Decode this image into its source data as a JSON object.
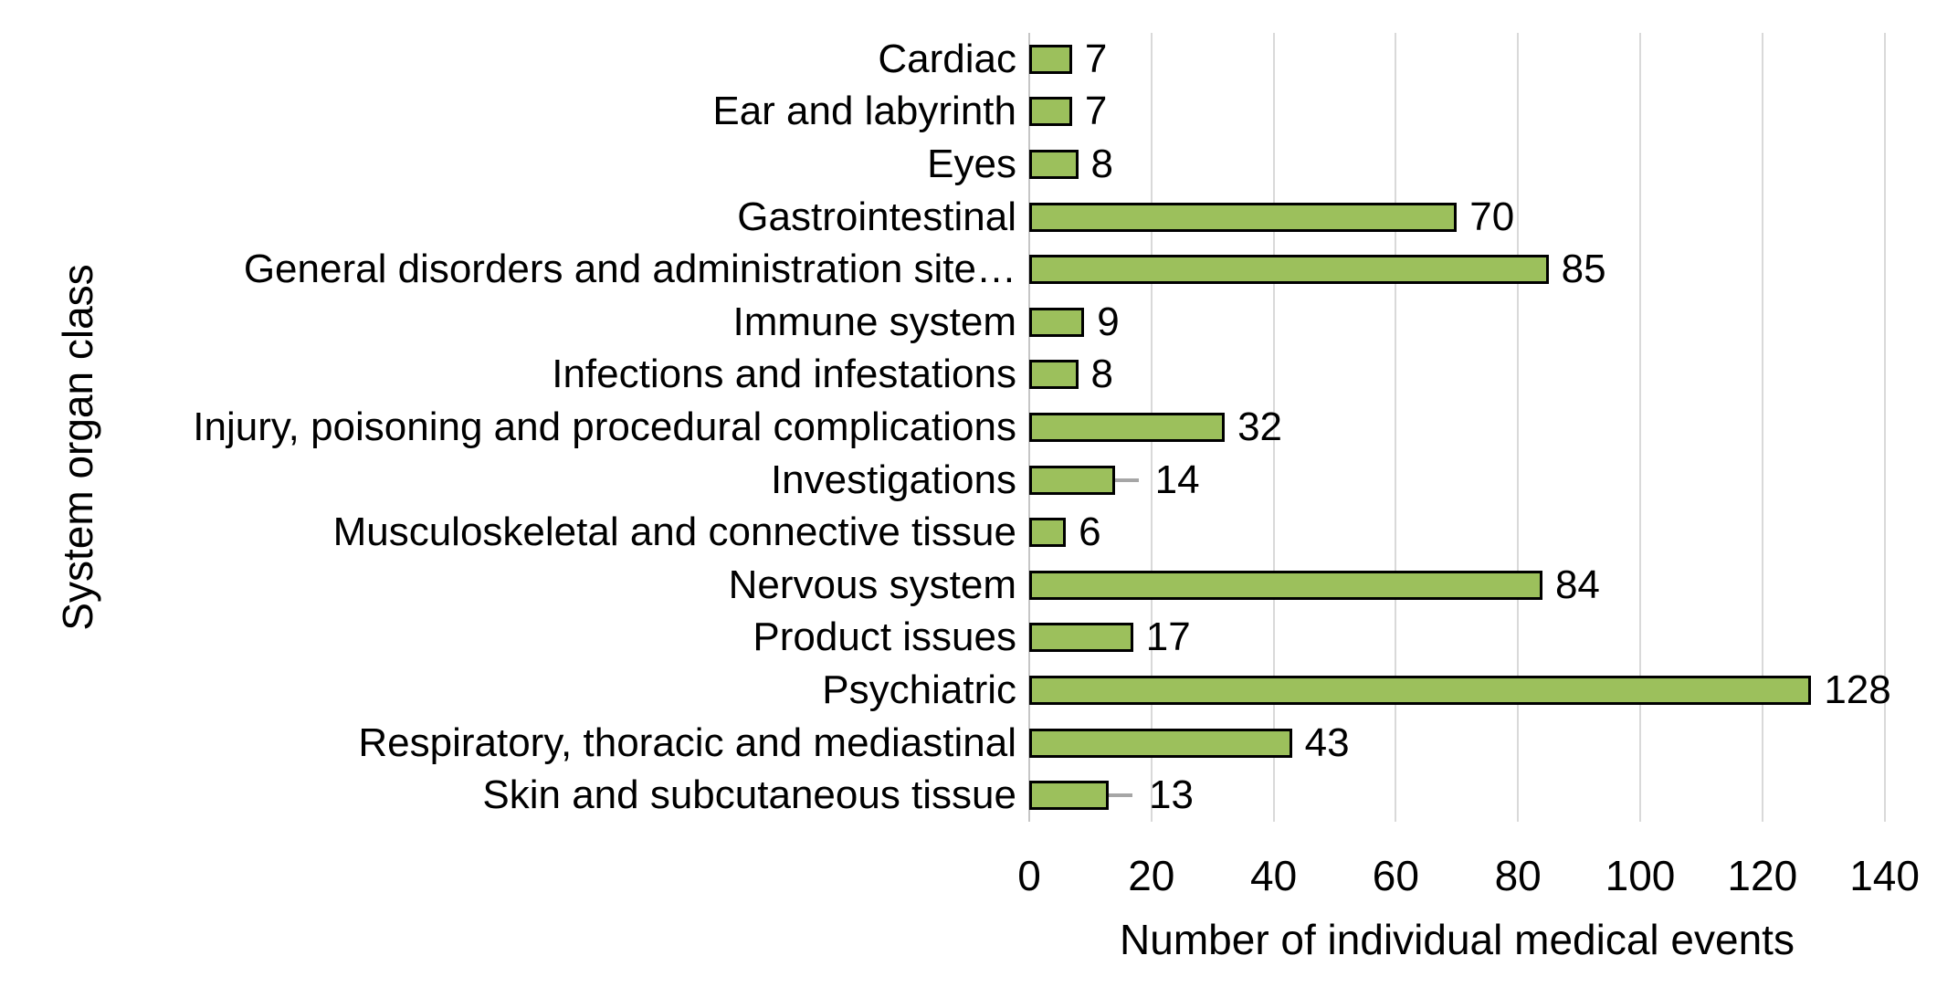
{
  "page": {
    "background_color": "#ffffff",
    "text_color": "#000000"
  },
  "chart_data": {
    "type": "bar",
    "orientation": "horizontal",
    "title": "",
    "xlabel": "Number of individual medical events",
    "ylabel": "System organ class",
    "xlim": [
      0,
      140
    ],
    "xticks": [
      "0",
      "20",
      "40",
      "60",
      "80",
      "100",
      "120",
      "140"
    ],
    "grid": "vertical gridlines every 20, light gray",
    "legend": "none",
    "colors": {
      "bar_fill": "#9cc05c",
      "bar_border": "#000000",
      "gridline": "#d9d9d9",
      "axis_line": "#c6c6c6",
      "whisker": "#a6a6a6",
      "text": "#000000"
    },
    "rows": [
      {
        "label": "Cardiac",
        "value": 7,
        "label_text": "7",
        "whisker": false
      },
      {
        "label": "Ear and labyrinth",
        "value": 7,
        "label_text": "7",
        "whisker": false
      },
      {
        "label": "Eyes",
        "value": 8,
        "label_text": "8",
        "whisker": false
      },
      {
        "label": "Gastrointestinal",
        "value": 70,
        "label_text": "70",
        "whisker": false
      },
      {
        "label": "General disorders and administration site…",
        "value": 85,
        "label_text": "85",
        "whisker": false
      },
      {
        "label": "Immune system",
        "value": 9,
        "label_text": "9",
        "whisker": false
      },
      {
        "label": "Infections and infestations",
        "value": 8,
        "label_text": "8",
        "whisker": false
      },
      {
        "label": "Injury, poisoning and procedural complications",
        "value": 32,
        "label_text": "32",
        "whisker": false
      },
      {
        "label": "Investigations",
        "value": 14,
        "label_text": "14",
        "whisker": true
      },
      {
        "label": "Musculoskeletal and connective tissue",
        "value": 6,
        "label_text": "6",
        "whisker": false
      },
      {
        "label": "Nervous system",
        "value": 84,
        "label_text": "84",
        "whisker": false
      },
      {
        "label": "Product issues",
        "value": 17,
        "label_text": "17",
        "whisker": false
      },
      {
        "label": "Psychiatric",
        "value": 128,
        "label_text": "128",
        "whisker": false
      },
      {
        "label": "Respiratory, thoracic and mediastinal",
        "value": 43,
        "label_text": "43",
        "whisker": false
      },
      {
        "label": "Skin and subcutaneous tissue",
        "value": 13,
        "label_text": "13",
        "whisker": true
      }
    ]
  }
}
